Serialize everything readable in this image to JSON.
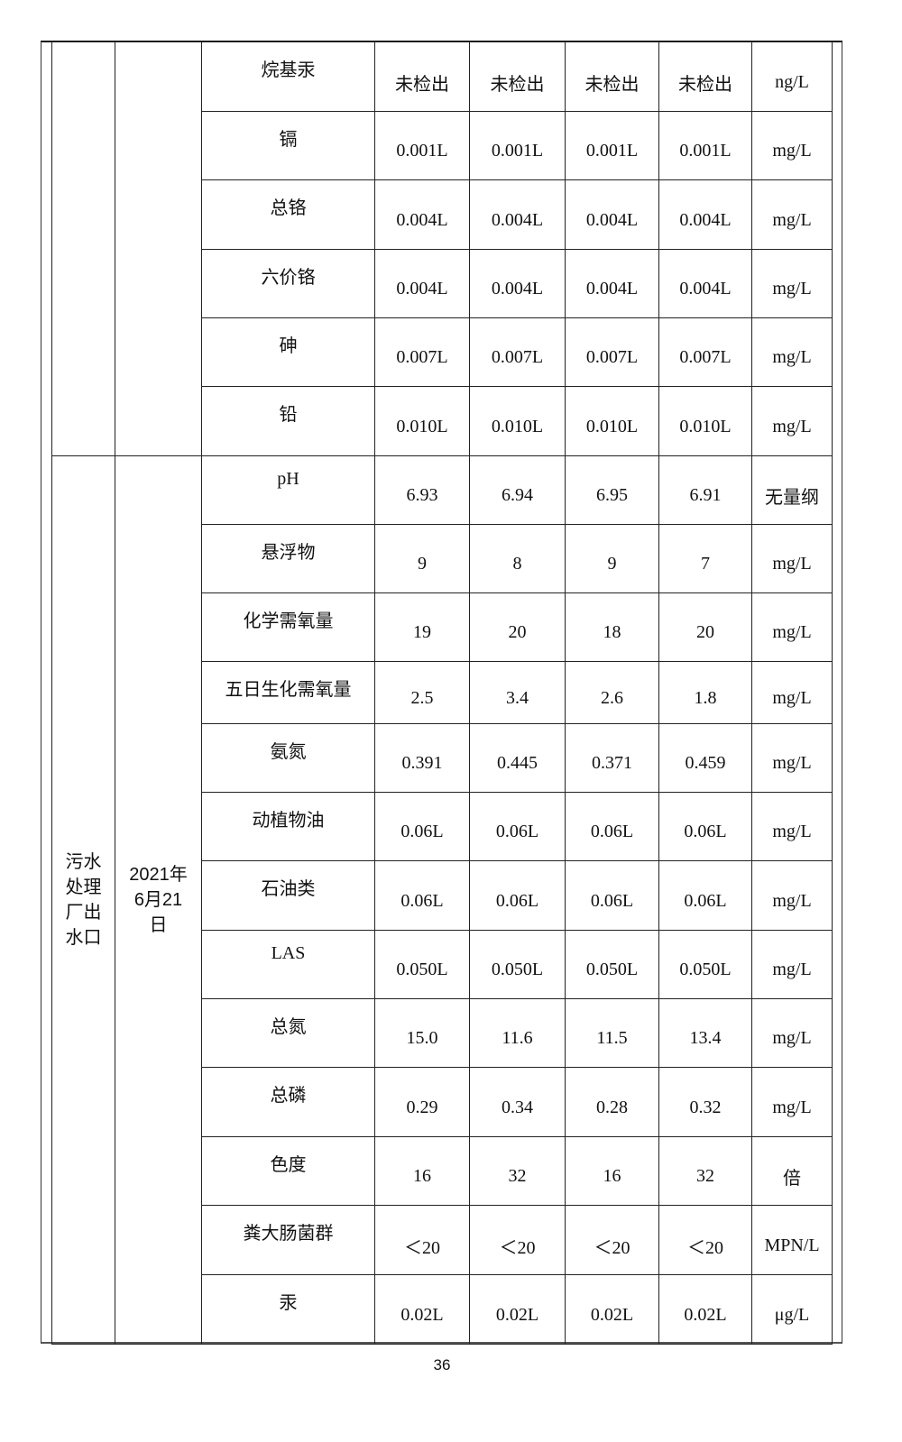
{
  "groups": [
    {
      "site": "",
      "date": "",
      "rows": [
        {
          "param": "烷基汞",
          "values": [
            "未检出",
            "未检出",
            "未检出",
            "未检出"
          ],
          "unit": "ng/L"
        },
        {
          "param": "镉",
          "values": [
            "0.001L",
            "0.001L",
            "0.001L",
            "0.001L"
          ],
          "unit": "mg/L"
        },
        {
          "param": "总铬",
          "values": [
            "0.004L",
            "0.004L",
            "0.004L",
            "0.004L"
          ],
          "unit": "mg/L"
        },
        {
          "param": "六价铬",
          "values": [
            "0.004L",
            "0.004L",
            "0.004L",
            "0.004L"
          ],
          "unit": "mg/L"
        },
        {
          "param": "砷",
          "values": [
            "0.007L",
            "0.007L",
            "0.007L",
            "0.007L"
          ],
          "unit": "mg/L"
        },
        {
          "param": "铅",
          "values": [
            "0.010L",
            "0.010L",
            "0.010L",
            "0.010L"
          ],
          "unit": "mg/L"
        }
      ]
    },
    {
      "site": "污水处理厂出水口",
      "date": "2021年6月21日",
      "rows": [
        {
          "param": "pH",
          "values": [
            "6.93",
            "6.94",
            "6.95",
            "6.91"
          ],
          "unit": "无量纲"
        },
        {
          "param": "悬浮物",
          "values": [
            "9",
            "8",
            "9",
            "7"
          ],
          "unit": "mg/L"
        },
        {
          "param": "化学需氧量",
          "values": [
            "19",
            "20",
            "18",
            "20"
          ],
          "unit": "mg/L"
        },
        {
          "param": "五日生化需氧量",
          "values": [
            "2.5",
            "3.4",
            "2.6",
            "1.8"
          ],
          "unit": "mg/L"
        },
        {
          "param": "氨氮",
          "values": [
            "0.391",
            "0.445",
            "0.371",
            "0.459"
          ],
          "unit": "mg/L"
        },
        {
          "param": "动植物油",
          "values": [
            "0.06L",
            "0.06L",
            "0.06L",
            "0.06L"
          ],
          "unit": "mg/L"
        },
        {
          "param": "石油类",
          "values": [
            "0.06L",
            "0.06L",
            "0.06L",
            "0.06L"
          ],
          "unit": "mg/L"
        },
        {
          "param": "LAS",
          "values": [
            "0.050L",
            "0.050L",
            "0.050L",
            "0.050L"
          ],
          "unit": "mg/L"
        },
        {
          "param": "总氮",
          "values": [
            "15.0",
            "11.6",
            "11.5",
            "13.4"
          ],
          "unit": "mg/L"
        },
        {
          "param": "总磷",
          "values": [
            "0.29",
            "0.34",
            "0.28",
            "0.32"
          ],
          "unit": "mg/L"
        },
        {
          "param": "色度",
          "values": [
            "16",
            "32",
            "16",
            "32"
          ],
          "unit": "倍"
        },
        {
          "param": "粪大肠菌群",
          "values": [
            "＜20",
            "＜20",
            "＜20",
            "＜20"
          ],
          "unit": "MPN/L"
        },
        {
          "param": "汞",
          "values": [
            "0.02L",
            "0.02L",
            "0.02L",
            "0.02L"
          ],
          "unit": "μg/L"
        }
      ]
    }
  ],
  "page_number": "36"
}
